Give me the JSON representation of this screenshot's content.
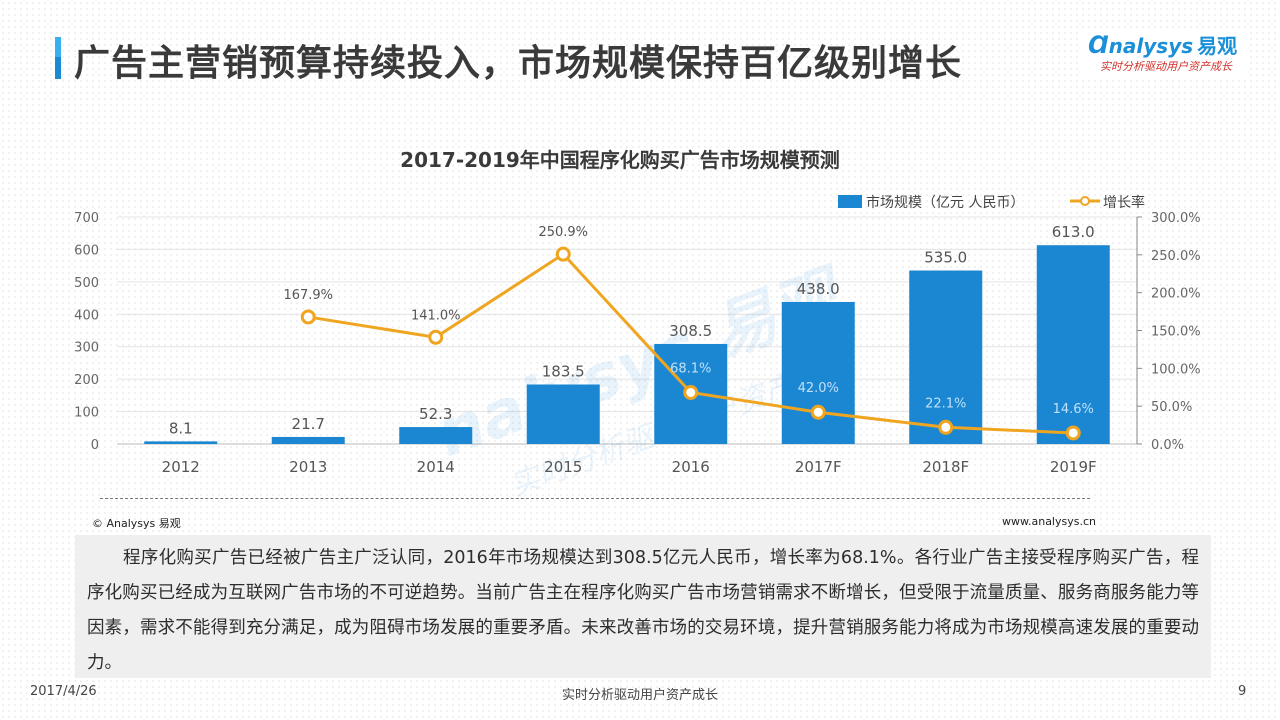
{
  "header": {
    "title": "广告主营销预算持续投入，市场规模保持百亿级别增长",
    "logo_text": "nalysys",
    "logo_cn": "易观",
    "logo_tagline": "实时分析驱动用户资产成长"
  },
  "chart_data": {
    "type": "bar",
    "title": "2017-2019年中国程序化购买广告市场规模预测",
    "categories": [
      "2012",
      "2013",
      "2014",
      "2015",
      "2016",
      "2017F",
      "2018F",
      "2019F"
    ],
    "series": [
      {
        "name": "市场规模（亿元 人民币）",
        "type": "bar",
        "axis": "left",
        "values": [
          8.1,
          21.7,
          52.3,
          183.5,
          308.5,
          438.0,
          535.0,
          613.0
        ],
        "labels": [
          "8.1",
          "21.7",
          "52.3",
          "183.5",
          "308.5",
          "438.0",
          "535.0",
          "613.0"
        ],
        "color": "#1b87d3"
      },
      {
        "name": "增长率",
        "type": "line",
        "axis": "right",
        "values": [
          null,
          167.9,
          141.0,
          250.9,
          68.1,
          42.0,
          22.1,
          14.6
        ],
        "labels": [
          "",
          "167.9%",
          "141.0%",
          "250.9%",
          "68.1%",
          "42.0%",
          "22.1%",
          "14.6%"
        ],
        "color": "#f0a520"
      }
    ],
    "y_left": {
      "min": 0,
      "max": 700,
      "ticks": [
        "0",
        "100",
        "200",
        "300",
        "400",
        "500",
        "600",
        "700"
      ]
    },
    "y_right": {
      "min": 0,
      "max": 300,
      "ticks": [
        "0.0%",
        "50.0%",
        "100.0%",
        "150.0%",
        "200.0%",
        "250.0%",
        "300.0%"
      ]
    },
    "legend_position": "top-right",
    "grid": true
  },
  "watermark": {
    "text": "nalysys 易观",
    "sub": "实时分析驱动用户资产成长"
  },
  "source": {
    "copyright": "© Analysys 易观",
    "website": "www.analysys.cn"
  },
  "body_text": "程序化购买广告已经被广告主广泛认同，2016年市场规模达到308.5亿元人民币，增长率为68.1%。各行业广告主接受程序购买广告，程序化购买已经成为互联网广告市场的不可逆趋势。当前广告主在程序化购买广告市场营销需求不断增长，但受限于流量质量、服务商服务能力等因素，需求不能得到充分满足，成为阻碍市场发展的重要矛盾。未来改善市场的交易环境，提升营销服务能力将成为市场规模高速发展的重要动力。",
  "footer": {
    "date": "2017/4/26",
    "center": "实时分析驱动用户资产成长",
    "page": "9"
  }
}
